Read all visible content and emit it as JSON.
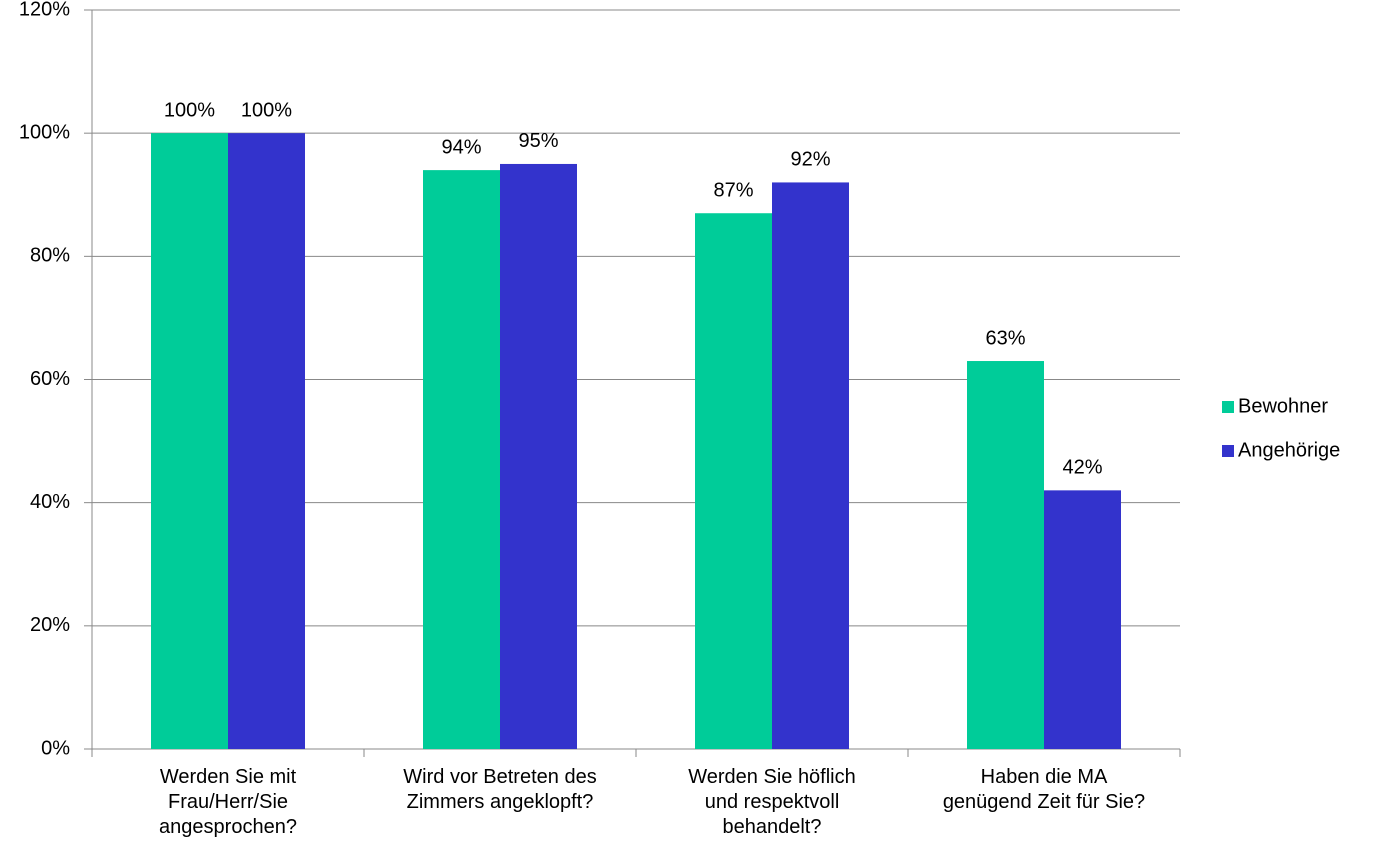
{
  "chart_data": {
    "type": "bar",
    "categories": [
      "Werden Sie mit\nFrau/Herr/Sie\nangesprochen?",
      "Wird vor Betreten des\nZimmers angeklopft?",
      "Werden Sie höflich\nund respektvoll\nbehandelt?",
      "Haben die MA\ngenügend Zeit für Sie?"
    ],
    "series": [
      {
        "name": "Bewohner",
        "color": "#00CC99",
        "values": [
          100,
          94,
          87,
          63
        ],
        "value_labels": [
          "100%",
          "94%",
          "87%",
          "63%"
        ]
      },
      {
        "name": "Angehörige",
        "color": "#3333CC",
        "values": [
          100,
          95,
          92,
          42
        ],
        "value_labels": [
          "100%",
          "95%",
          "92%",
          "42%"
        ]
      }
    ],
    "ylim": [
      0,
      120
    ],
    "yticks": [
      {
        "value": 0,
        "label": "0%"
      },
      {
        "value": 20,
        "label": "20%"
      },
      {
        "value": 40,
        "label": "40%"
      },
      {
        "value": 60,
        "label": "60%"
      },
      {
        "value": 80,
        "label": "80%"
      },
      {
        "value": 100,
        "label": "100%"
      },
      {
        "value": 120,
        "label": "120%"
      }
    ],
    "grid": true,
    "legend": "right"
  }
}
